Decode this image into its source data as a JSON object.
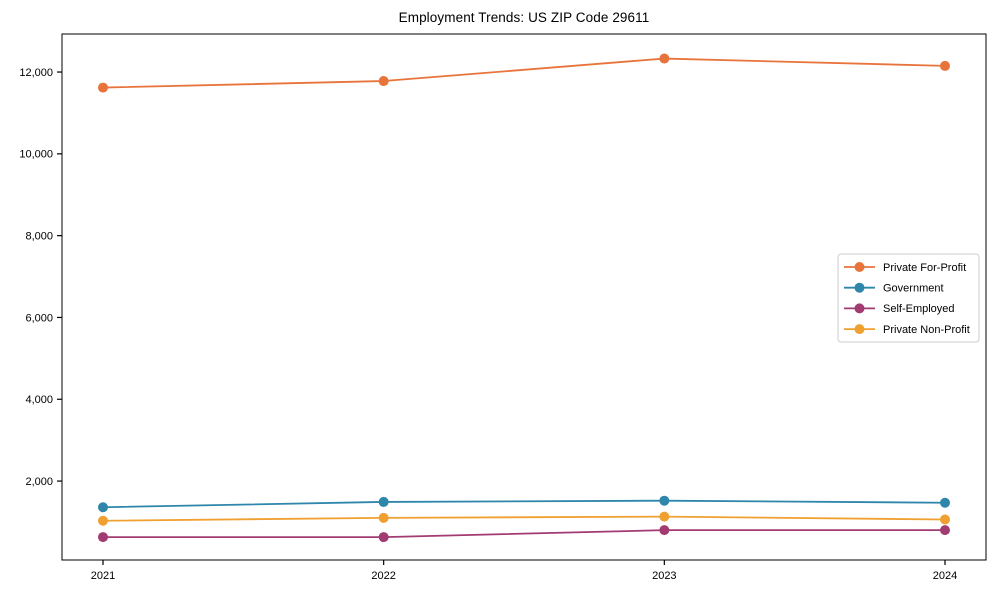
{
  "chart_data": {
    "type": "line",
    "title": "Employment Trends: US ZIP Code 29611",
    "x": [
      2021,
      2022,
      2023,
      2024
    ],
    "x_tick_labels": [
      "2021",
      "2022",
      "2023",
      "2024"
    ],
    "series": [
      {
        "name": "Private For-Profit",
        "color": "#E8743B",
        "values": [
          11620,
          11780,
          12330,
          12150
        ]
      },
      {
        "name": "Government",
        "color": "#2E86AB",
        "values": [
          1360,
          1490,
          1520,
          1470
        ]
      },
      {
        "name": "Self-Employed",
        "color": "#A23B72",
        "values": [
          630,
          630,
          800,
          800
        ]
      },
      {
        "name": "Private Non-Profit",
        "color": "#F0A030",
        "values": [
          1030,
          1100,
          1130,
          1060
        ]
      }
    ],
    "ylim": [
      70,
      12930
    ],
    "yticks": [
      2000,
      4000,
      6000,
      8000,
      10000,
      12000
    ],
    "ytick_labels": [
      "2,000",
      "4,000",
      "6,000",
      "8,000",
      "10,000",
      "12,000"
    ],
    "grid": false,
    "legend_position": "center-right",
    "marker": "circle",
    "marker_size": 5,
    "line_width": 1.8,
    "background": "#ffffff",
    "axis_color": "#000000",
    "legend_border_color": "#cccccc"
  }
}
